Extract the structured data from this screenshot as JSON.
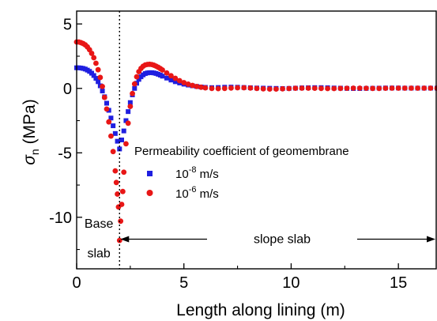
{
  "chart_data": {
    "type": "scatter",
    "xlabel": "Length along lining (m)",
    "ylabel_main": "σ",
    "ylabel_sub": "n",
    "ylabel_unit": " (MPa)",
    "xlim": [
      0,
      16.8
    ],
    "ylim": [
      -14,
      6
    ],
    "xticks": [
      0,
      5,
      10,
      15
    ],
    "yticks": [
      5,
      0,
      -5,
      -10
    ],
    "grid": false,
    "legend_placement": "center-right",
    "legend_title": "Permeability coefficient of geomembrane",
    "series": [
      {
        "name_base": "10",
        "name_exp": "-8",
        "name_unit": " m/s",
        "marker": "square",
        "color": "#1f1fe0",
        "points": [
          [
            0,
            1.6
          ],
          [
            0.1,
            1.6
          ],
          [
            0.2,
            1.58
          ],
          [
            0.3,
            1.55
          ],
          [
            0.4,
            1.5
          ],
          [
            0.5,
            1.42
          ],
          [
            0.6,
            1.32
          ],
          [
            0.7,
            1.18
          ],
          [
            0.8,
            1.0
          ],
          [
            0.9,
            0.78
          ],
          [
            1.0,
            0.52
          ],
          [
            1.1,
            0.2
          ],
          [
            1.2,
            -0.2
          ],
          [
            1.3,
            -0.65
          ],
          [
            1.4,
            -1.15
          ],
          [
            1.5,
            -1.7
          ],
          [
            1.6,
            -2.3
          ],
          [
            1.7,
            -2.9
          ],
          [
            1.8,
            -3.5
          ],
          [
            1.9,
            -4.1
          ],
          [
            2.0,
            -4.7
          ],
          [
            2.1,
            -4.0
          ],
          [
            2.2,
            -3.3
          ],
          [
            2.3,
            -2.5
          ],
          [
            2.4,
            -1.8
          ],
          [
            2.5,
            -1.1
          ],
          [
            2.6,
            -0.5
          ],
          [
            2.7,
            0.0
          ],
          [
            2.8,
            0.4
          ],
          [
            2.9,
            0.7
          ],
          [
            3.0,
            0.9
          ],
          [
            3.1,
            1.05
          ],
          [
            3.2,
            1.15
          ],
          [
            3.3,
            1.2
          ],
          [
            3.4,
            1.22
          ],
          [
            3.5,
            1.22
          ],
          [
            3.6,
            1.2
          ],
          [
            3.7,
            1.16
          ],
          [
            3.8,
            1.1
          ],
          [
            3.9,
            1.03
          ],
          [
            4.0,
            0.95
          ],
          [
            4.2,
            0.8
          ],
          [
            4.4,
            0.65
          ],
          [
            4.6,
            0.52
          ],
          [
            4.8,
            0.42
          ],
          [
            5.0,
            0.33
          ],
          [
            5.2,
            0.26
          ],
          [
            5.4,
            0.2
          ],
          [
            5.6,
            0.15
          ],
          [
            5.8,
            0.11
          ],
          [
            6.0,
            0.08
          ],
          [
            6.3,
            0.06
          ],
          [
            6.6,
            0.07
          ],
          [
            6.9,
            0.09
          ],
          [
            7.2,
            0.1
          ],
          [
            7.5,
            0.09
          ],
          [
            7.8,
            0.07
          ],
          [
            8.1,
            0.05
          ],
          [
            8.4,
            0.03
          ],
          [
            8.7,
            0.02
          ],
          [
            9.0,
            0.01
          ],
          [
            9.3,
            0.0
          ],
          [
            9.6,
            -0.01
          ],
          [
            9.9,
            0.0
          ],
          [
            10.2,
            0.02
          ],
          [
            10.5,
            0.04
          ],
          [
            10.8,
            0.05
          ],
          [
            11.1,
            0.06
          ],
          [
            11.4,
            0.06
          ],
          [
            11.7,
            0.05
          ],
          [
            12.0,
            0.03
          ],
          [
            12.3,
            0.02
          ],
          [
            12.6,
            0.0
          ],
          [
            12.9,
            -0.01
          ],
          [
            13.2,
            -0.01
          ],
          [
            13.5,
            0.0
          ],
          [
            13.8,
            0.01
          ],
          [
            14.1,
            0.02
          ],
          [
            14.4,
            0.03
          ],
          [
            14.7,
            0.03
          ],
          [
            15.0,
            0.03
          ],
          [
            15.3,
            0.02
          ],
          [
            15.6,
            0.02
          ],
          [
            15.9,
            0.02
          ],
          [
            16.2,
            0.02
          ],
          [
            16.5,
            0.02
          ],
          [
            16.8,
            0.02
          ]
        ]
      },
      {
        "name_base": "10",
        "name_exp": "-6",
        "name_unit": " m/s",
        "marker": "circle",
        "color": "#e81616",
        "points": [
          [
            0,
            3.6
          ],
          [
            0.1,
            3.6
          ],
          [
            0.2,
            3.55
          ],
          [
            0.3,
            3.48
          ],
          [
            0.4,
            3.38
          ],
          [
            0.5,
            3.22
          ],
          [
            0.6,
            3.0
          ],
          [
            0.7,
            2.72
          ],
          [
            0.8,
            2.38
          ],
          [
            0.9,
            1.95
          ],
          [
            1.0,
            1.45
          ],
          [
            1.1,
            0.85
          ],
          [
            1.2,
            0.15
          ],
          [
            1.3,
            -0.7
          ],
          [
            1.4,
            -1.6
          ],
          [
            1.5,
            -2.6
          ],
          [
            1.6,
            -3.7
          ],
          [
            1.7,
            -4.9
          ],
          [
            1.8,
            -6.4
          ],
          [
            1.85,
            -7.3
          ],
          [
            1.9,
            -8.2
          ],
          [
            1.95,
            -9.2
          ],
          [
            2.0,
            -11.8
          ],
          [
            2.05,
            -10.3
          ],
          [
            2.1,
            -9.0
          ],
          [
            2.15,
            -8.0
          ],
          [
            2.2,
            -6.5
          ],
          [
            2.3,
            -4.3
          ],
          [
            2.4,
            -2.7
          ],
          [
            2.5,
            -1.4
          ],
          [
            2.6,
            -0.4
          ],
          [
            2.7,
            0.35
          ],
          [
            2.8,
            0.9
          ],
          [
            2.9,
            1.3
          ],
          [
            3.0,
            1.55
          ],
          [
            3.1,
            1.72
          ],
          [
            3.2,
            1.82
          ],
          [
            3.3,
            1.86
          ],
          [
            3.4,
            1.87
          ],
          [
            3.5,
            1.85
          ],
          [
            3.6,
            1.8
          ],
          [
            3.7,
            1.73
          ],
          [
            3.8,
            1.64
          ],
          [
            3.9,
            1.54
          ],
          [
            4.0,
            1.43
          ],
          [
            4.2,
            1.2
          ],
          [
            4.4,
            0.98
          ],
          [
            4.6,
            0.78
          ],
          [
            4.8,
            0.6
          ],
          [
            5.0,
            0.45
          ],
          [
            5.2,
            0.33
          ],
          [
            5.4,
            0.23
          ],
          [
            5.6,
            0.15
          ],
          [
            5.8,
            0.09
          ],
          [
            6.0,
            0.04
          ],
          [
            6.3,
            0.0
          ],
          [
            6.6,
            -0.02
          ],
          [
            6.9,
            0.0
          ],
          [
            7.2,
            0.03
          ],
          [
            7.5,
            0.05
          ],
          [
            7.8,
            0.05
          ],
          [
            8.1,
            0.03
          ],
          [
            8.4,
            0.0
          ],
          [
            8.7,
            -0.03
          ],
          [
            9.0,
            -0.05
          ],
          [
            9.3,
            -0.05
          ],
          [
            9.6,
            -0.03
          ],
          [
            9.9,
            -0.01
          ],
          [
            10.2,
            0.01
          ],
          [
            10.5,
            0.02
          ],
          [
            10.8,
            0.02
          ],
          [
            11.1,
            0.01
          ],
          [
            11.4,
            0.0
          ],
          [
            11.7,
            -0.01
          ],
          [
            12.0,
            -0.01
          ],
          [
            12.3,
            0.0
          ],
          [
            12.6,
            0.01
          ],
          [
            12.9,
            0.02
          ],
          [
            13.2,
            0.02
          ],
          [
            13.5,
            0.01
          ],
          [
            13.8,
            0.0
          ],
          [
            14.1,
            0.0
          ],
          [
            14.4,
            0.01
          ],
          [
            14.7,
            0.02
          ],
          [
            15.0,
            0.02
          ],
          [
            15.3,
            0.02
          ],
          [
            15.6,
            0.02
          ],
          [
            15.9,
            0.02
          ],
          [
            16.2,
            0.02
          ],
          [
            16.5,
            0.02
          ],
          [
            16.8,
            0.02
          ]
        ]
      }
    ],
    "annotations": {
      "divider_x": 2.0,
      "base_label_line1": "Base",
      "base_label_line2": "slab",
      "slope_label": "slope slab",
      "arrow_y": -11.7,
      "arrow_from_x": 2.0,
      "arrow_to_x": 16.8
    }
  }
}
